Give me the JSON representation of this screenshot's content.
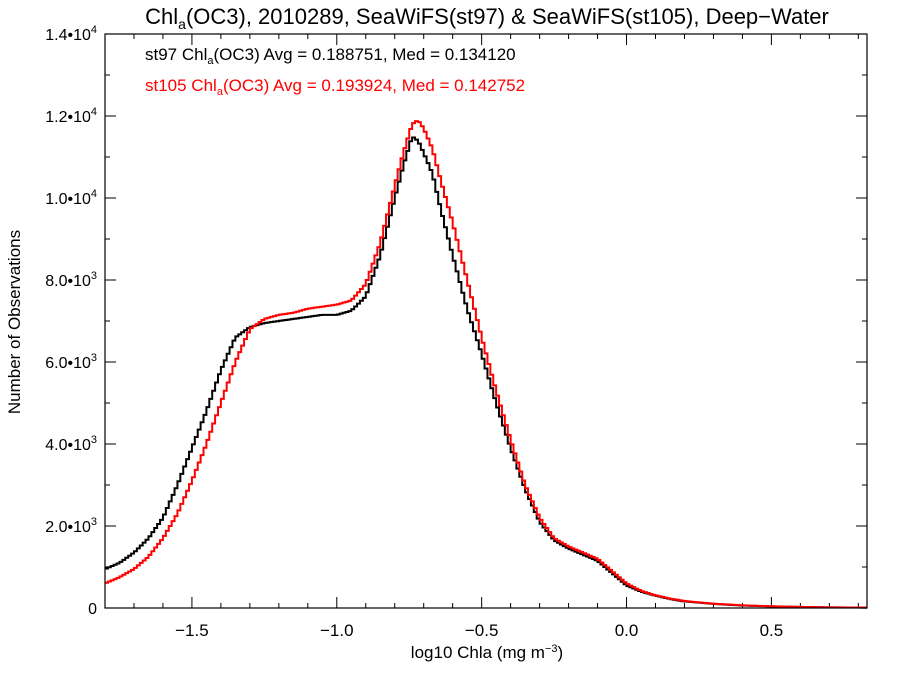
{
  "chart_data": {
    "type": "line",
    "title_parts": {
      "pre": "Chl",
      "sub": "a",
      "post": "(OC3), 2010289, SeaWiFS(st97) & SeaWiFS(st105), Deep−Water"
    },
    "xlabel": {
      "pre": "log10 Chla (mg m",
      "sup": "−3",
      "post": ")"
    },
    "ylabel": "Number of Observations",
    "xlim": [
      -1.8,
      0.83
    ],
    "ylim": [
      0,
      14000
    ],
    "x_ticks": [
      {
        "value": -1.5,
        "label": "−1.5"
      },
      {
        "value": -1.0,
        "label": "−1.0"
      },
      {
        "value": -0.5,
        "label": "−0.5"
      },
      {
        "value": 0.0,
        "label": "0.0"
      },
      {
        "value": 0.5,
        "label": "0.5"
      }
    ],
    "y_ticks": [
      {
        "value": 0,
        "mant": "0",
        "exp": ""
      },
      {
        "value": 2000,
        "mant": "2.0•10",
        "exp": "3"
      },
      {
        "value": 4000,
        "mant": "4.0•10",
        "exp": "3"
      },
      {
        "value": 6000,
        "mant": "6.0•10",
        "exp": "3"
      },
      {
        "value": 8000,
        "mant": "8.0•10",
        "exp": "3"
      },
      {
        "value": 10000,
        "mant": "1.0•10",
        "exp": "4"
      },
      {
        "value": 12000,
        "mant": "1.2•10",
        "exp": "4"
      },
      {
        "value": 14000,
        "mant": "1.4•10",
        "exp": "4"
      }
    ],
    "grid": false,
    "series": [
      {
        "name": "st97",
        "color": "#000000",
        "legend": {
          "pre": "st97 Chl",
          "sub": "a",
          "post": "(OC3) Avg = 0.188751, Med = 0.134120"
        },
        "points": [
          [
            -1.8,
            950
          ],
          [
            -1.75,
            1100
          ],
          [
            -1.7,
            1350
          ],
          [
            -1.65,
            1700
          ],
          [
            -1.6,
            2200
          ],
          [
            -1.55,
            3000
          ],
          [
            -1.5,
            3900
          ],
          [
            -1.45,
            4800
          ],
          [
            -1.4,
            5800
          ],
          [
            -1.35,
            6600
          ],
          [
            -1.3,
            6850
          ],
          [
            -1.25,
            6950
          ],
          [
            -1.2,
            7000
          ],
          [
            -1.15,
            7050
          ],
          [
            -1.1,
            7100
          ],
          [
            -1.05,
            7150
          ],
          [
            -1.0,
            7150
          ],
          [
            -0.95,
            7250
          ],
          [
            -0.9,
            7600
          ],
          [
            -0.85,
            8600
          ],
          [
            -0.8,
            10000
          ],
          [
            -0.77,
            10800
          ],
          [
            -0.74,
            11500
          ],
          [
            -0.72,
            11400
          ],
          [
            -0.7,
            11100
          ],
          [
            -0.67,
            10600
          ],
          [
            -0.64,
            9700
          ],
          [
            -0.6,
            8600
          ],
          [
            -0.55,
            7300
          ],
          [
            -0.5,
            6200
          ],
          [
            -0.45,
            5000
          ],
          [
            -0.4,
            3900
          ],
          [
            -0.35,
            2900
          ],
          [
            -0.3,
            2100
          ],
          [
            -0.25,
            1650
          ],
          [
            -0.2,
            1450
          ],
          [
            -0.15,
            1300
          ],
          [
            -0.1,
            1150
          ],
          [
            -0.05,
            850
          ],
          [
            0.0,
            550
          ],
          [
            0.05,
            400
          ],
          [
            0.1,
            300
          ],
          [
            0.15,
            220
          ],
          [
            0.2,
            160
          ],
          [
            0.3,
            100
          ],
          [
            0.4,
            60
          ],
          [
            0.5,
            40
          ],
          [
            0.6,
            25
          ],
          [
            0.7,
            15
          ],
          [
            0.83,
            10
          ]
        ]
      },
      {
        "name": "st105",
        "color": "#ff0000",
        "legend": {
          "pre": "st105 Chl",
          "sub": "a",
          "post": "(OC3) Avg = 0.193924, Med = 0.142752"
        },
        "points": [
          [
            -1.8,
            600
          ],
          [
            -1.75,
            750
          ],
          [
            -1.7,
            950
          ],
          [
            -1.65,
            1250
          ],
          [
            -1.6,
            1700
          ],
          [
            -1.55,
            2300
          ],
          [
            -1.5,
            3100
          ],
          [
            -1.45,
            4000
          ],
          [
            -1.4,
            5000
          ],
          [
            -1.35,
            6000
          ],
          [
            -1.3,
            6800
          ],
          [
            -1.25,
            7050
          ],
          [
            -1.2,
            7150
          ],
          [
            -1.15,
            7200
          ],
          [
            -1.1,
            7300
          ],
          [
            -1.05,
            7350
          ],
          [
            -1.0,
            7400
          ],
          [
            -0.95,
            7500
          ],
          [
            -0.9,
            7900
          ],
          [
            -0.85,
            8900
          ],
          [
            -0.8,
            10300
          ],
          [
            -0.77,
            11100
          ],
          [
            -0.74,
            11800
          ],
          [
            -0.72,
            11900
          ],
          [
            -0.7,
            11700
          ],
          [
            -0.67,
            11200
          ],
          [
            -0.64,
            10400
          ],
          [
            -0.6,
            9400
          ],
          [
            -0.55,
            8000
          ],
          [
            -0.5,
            6600
          ],
          [
            -0.45,
            5300
          ],
          [
            -0.4,
            4100
          ],
          [
            -0.35,
            3000
          ],
          [
            -0.3,
            2200
          ],
          [
            -0.25,
            1700
          ],
          [
            -0.2,
            1500
          ],
          [
            -0.15,
            1350
          ],
          [
            -0.1,
            1200
          ],
          [
            -0.05,
            900
          ],
          [
            0.0,
            600
          ],
          [
            0.05,
            420
          ],
          [
            0.1,
            310
          ],
          [
            0.15,
            230
          ],
          [
            0.2,
            170
          ],
          [
            0.3,
            105
          ],
          [
            0.4,
            65
          ],
          [
            0.5,
            42
          ],
          [
            0.6,
            27
          ],
          [
            0.7,
            16
          ],
          [
            0.83,
            10
          ]
        ]
      }
    ]
  }
}
